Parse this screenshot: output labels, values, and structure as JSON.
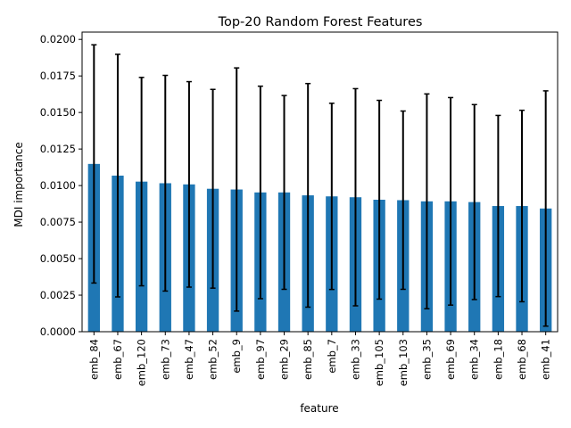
{
  "chart_data": {
    "type": "bar",
    "title": "Top-20 Random Forest Features",
    "xlabel": "feature",
    "ylabel": "MDI importance",
    "categories": [
      "emb_84",
      "emb_67",
      "emb_120",
      "emb_73",
      "emb_47",
      "emb_52",
      "emb_9",
      "emb_97",
      "emb_29",
      "emb_85",
      "emb_7",
      "emb_33",
      "emb_105",
      "emb_103",
      "emb_35",
      "emb_69",
      "emb_34",
      "emb_18",
      "emb_68",
      "emb_41"
    ],
    "values": [
      0.01148,
      0.01068,
      0.01027,
      0.01016,
      0.01008,
      0.00978,
      0.00973,
      0.00953,
      0.00953,
      0.00933,
      0.00926,
      0.0092,
      0.00903,
      0.009,
      0.00892,
      0.00892,
      0.00887,
      0.0086,
      0.0086,
      0.00843
    ],
    "error": [
      0.00815,
      0.0083,
      0.00713,
      0.00738,
      0.00703,
      0.0068,
      0.00832,
      0.00727,
      0.00663,
      0.00765,
      0.00637,
      0.00743,
      0.0068,
      0.0061,
      0.00735,
      0.0071,
      0.00667,
      0.0062,
      0.00655,
      0.00805
    ],
    "ylim": [
      0,
      0.0205
    ],
    "yticks": [
      0,
      0.0025,
      0.005,
      0.0075,
      0.01,
      0.0125,
      0.015,
      0.0175,
      0.02
    ],
    "ytick_labels": [
      "0.0000",
      "0.0025",
      "0.0050",
      "0.0075",
      "0.0100",
      "0.0125",
      "0.0150",
      "0.0175",
      "0.0200"
    ],
    "grid": false,
    "colors": {
      "bar": "#1f77b4",
      "error": "#000000",
      "axis": "#000000"
    }
  }
}
